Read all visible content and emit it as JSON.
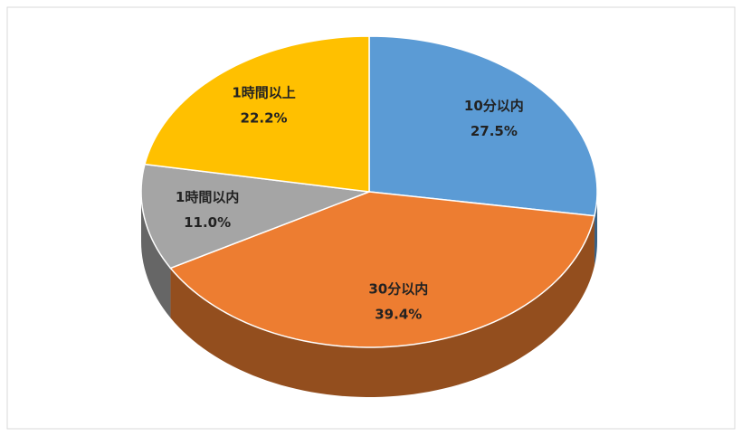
{
  "chart_data": {
    "type": "pie3d",
    "categories": [
      "10分以内",
      "30分以内",
      "1時間以内",
      "1時間以上"
    ],
    "values": [
      27.5,
      39.4,
      11.0,
      22.2
    ],
    "value_labels": [
      "27.5%",
      "39.4%",
      "11.0%",
      "22.2%"
    ],
    "colors": [
      "#5b9bd5",
      "#ed7d31",
      "#a5a5a5",
      "#ffc000"
    ]
  }
}
